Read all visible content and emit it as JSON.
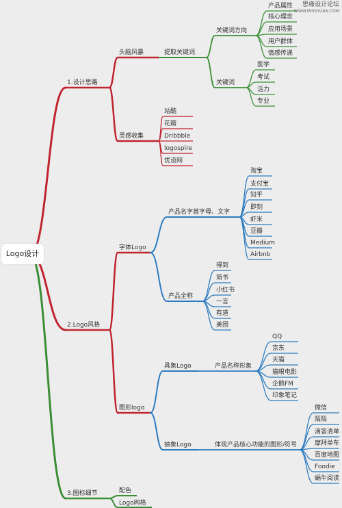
{
  "colors": {
    "red": "#c0242f",
    "green": "#3b8e36",
    "blue": "#2d7bbf",
    "text": "#333333"
  },
  "watermark": {
    "title": "思缘设计论坛",
    "url": "WWW.MISSYUAN.COM"
  },
  "root": "Logo设计",
  "branches": {
    "design_thinking": "1.设计思路",
    "logo_style": "2.Logo风格",
    "icon_detail": "3.图标细节"
  },
  "brainstorm": {
    "label": "头脑风暴",
    "extract": "提取关键词",
    "direction": "关键词方向",
    "direction_items": [
      "产品属性",
      "核心理念",
      "应用场景",
      "用户群体",
      "情感传递"
    ],
    "keywords": "关键词",
    "keyword_items": [
      "医学",
      "考试",
      "活力",
      "专业"
    ]
  },
  "inspiration": {
    "label": "灵感收集",
    "items": [
      "站酷",
      "花瓣",
      "Dribbble",
      "logospire",
      "优设网"
    ]
  },
  "font_logo": {
    "label": "字体Logo",
    "initials": "产品名字首字母、文字",
    "initial_items": [
      "淘宝",
      "支付宝",
      "知乎",
      "即刻",
      "虾米",
      "豆瓣",
      "Medium",
      "Airbnb"
    ],
    "fullname": "产品全称",
    "fullname_items": [
      "得到",
      "简书",
      "小红书",
      "一言",
      "有道",
      "美团"
    ]
  },
  "graphic_logo": {
    "label": "图形logo",
    "concrete": "具象Logo",
    "image": "产品名称形象",
    "image_items": [
      "QQ",
      "京东",
      "天猫",
      "猫眼电影",
      "企鹅FM",
      "印象笔记"
    ],
    "abstract": "抽象Logo",
    "function": "体现产品核心功能的图形/符号",
    "function_items": [
      "微信",
      "陌陌",
      "滴答清单",
      "摩拜单车",
      "百度地图",
      "Foodie",
      "蜗牛阅读"
    ]
  },
  "icon_detail": {
    "items": [
      "配色",
      "Logo网格"
    ]
  }
}
